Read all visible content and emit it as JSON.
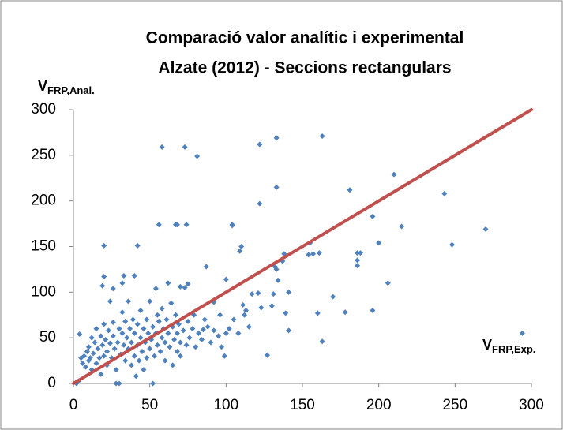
{
  "chart_data": {
    "type": "scatter",
    "title": [
      "Comparació valor analític i experimental",
      "Alzate (2012) - Seccions rectangulars"
    ],
    "y_label": {
      "main": "V",
      "sub": "FRP,Anal."
    },
    "x_label": {
      "main": "V",
      "sub": "FRP,Exp."
    },
    "xlim": [
      0,
      300
    ],
    "ylim": [
      0,
      300
    ],
    "xticks": [
      0,
      50,
      100,
      150,
      200,
      250,
      300
    ],
    "yticks": [
      0,
      50,
      100,
      150,
      200,
      250,
      300
    ],
    "grid": false,
    "series": [
      {
        "type": "scatter",
        "color": "#4f81bd",
        "points": [
          [
            58,
            259
          ],
          [
            73,
            259
          ],
          [
            81,
            249
          ],
          [
            122,
            262
          ],
          [
            133,
            269
          ],
          [
            163,
            271
          ],
          [
            133,
            215
          ],
          [
            122,
            197
          ],
          [
            210,
            229
          ],
          [
            243,
            208
          ],
          [
            181,
            212
          ],
          [
            270,
            169
          ],
          [
            215,
            172
          ],
          [
            196,
            183
          ],
          [
            200,
            154
          ],
          [
            248,
            152
          ],
          [
            294,
            55
          ],
          [
            163,
            46
          ],
          [
            127,
            31
          ],
          [
            206,
            110
          ],
          [
            186,
            143
          ],
          [
            188,
            143
          ],
          [
            186,
            135
          ],
          [
            186,
            129
          ],
          [
            178,
            78
          ],
          [
            196,
            80
          ],
          [
            170,
            95
          ],
          [
            155,
            154
          ],
          [
            157,
            142
          ],
          [
            161,
            143
          ],
          [
            154,
            141
          ],
          [
            138,
            142
          ],
          [
            137,
            134
          ],
          [
            132,
            128
          ],
          [
            133,
            125
          ],
          [
            134,
            113
          ],
          [
            131,
            98
          ],
          [
            130,
            85
          ],
          [
            139,
            77
          ],
          [
            160,
            77
          ],
          [
            141,
            58
          ],
          [
            141,
            100
          ],
          [
            110,
            150
          ],
          [
            109,
            145
          ],
          [
            104,
            174
          ],
          [
            104,
            173
          ],
          [
            74,
            174
          ],
          [
            68,
            174
          ],
          [
            67,
            174
          ],
          [
            56,
            174
          ],
          [
            42,
            151
          ],
          [
            20,
            151
          ],
          [
            87,
            128
          ],
          [
            100,
            114
          ],
          [
            117,
            98
          ],
          [
            121,
            99
          ],
          [
            111,
            86
          ],
          [
            113,
            80
          ],
          [
            123,
            83
          ],
          [
            96,
            75
          ],
          [
            100,
            55
          ],
          [
            85,
            59
          ],
          [
            99,
            30
          ],
          [
            92,
            89
          ],
          [
            75,
            109
          ],
          [
            70,
            106
          ],
          [
            62,
            110
          ],
          [
            40,
            118
          ],
          [
            33,
            118
          ],
          [
            20,
            117
          ],
          [
            19,
            107
          ],
          [
            32,
            110
          ],
          [
            26,
            104
          ],
          [
            54,
            104
          ],
          [
            2,
            0
          ],
          [
            3,
            2
          ],
          [
            5,
            28
          ],
          [
            4,
            54
          ],
          [
            6,
            22
          ],
          [
            7,
            30
          ],
          [
            8,
            18
          ],
          [
            9,
            35
          ],
          [
            10,
            25
          ],
          [
            10,
            40
          ],
          [
            11,
            28
          ],
          [
            12,
            50
          ],
          [
            12,
            15
          ],
          [
            13,
            33
          ],
          [
            14,
            45
          ],
          [
            15,
            22
          ],
          [
            15,
            60
          ],
          [
            16,
            38
          ],
          [
            17,
            28
          ],
          [
            18,
            52
          ],
          [
            18,
            10
          ],
          [
            19,
            42
          ],
          [
            20,
            30
          ],
          [
            20,
            65
          ],
          [
            21,
            48
          ],
          [
            22,
            20
          ],
          [
            22,
            35
          ],
          [
            23,
            58
          ],
          [
            24,
            44
          ],
          [
            24,
            90
          ],
          [
            25,
            28
          ],
          [
            26,
            52
          ],
          [
            26,
            67
          ],
          [
            27,
            38
          ],
          [
            28,
            15
          ],
          [
            28,
            0
          ],
          [
            29,
            45
          ],
          [
            30,
            60
          ],
          [
            30,
            0
          ],
          [
            31,
            32
          ],
          [
            32,
            55
          ],
          [
            32,
            78
          ],
          [
            33,
            42
          ],
          [
            34,
            25
          ],
          [
            34,
            68
          ],
          [
            35,
            50
          ],
          [
            36,
            38
          ],
          [
            36,
            90
          ],
          [
            37,
            60
          ],
          [
            38,
            20
          ],
          [
            38,
            45
          ],
          [
            39,
            70
          ],
          [
            40,
            30
          ],
          [
            40,
            55
          ],
          [
            41,
            8
          ],
          [
            42,
            42
          ],
          [
            42,
            65
          ],
          [
            43,
            25
          ],
          [
            44,
            50
          ],
          [
            44,
            80
          ],
          [
            45,
            35
          ],
          [
            46,
            60
          ],
          [
            46,
            15
          ],
          [
            47,
            45
          ],
          [
            48,
            70
          ],
          [
            48,
            28
          ],
          [
            49,
            55
          ],
          [
            50,
            38
          ],
          [
            50,
            90
          ],
          [
            51,
            48
          ],
          [
            52,
            62
          ],
          [
            52,
            0
          ],
          [
            53,
            30
          ],
          [
            54,
            55
          ],
          [
            55,
            42
          ],
          [
            55,
            75
          ],
          [
            56,
            68
          ],
          [
            57,
            35
          ],
          [
            58,
            50
          ],
          [
            58,
            82
          ],
          [
            59,
            60
          ],
          [
            60,
            45
          ],
          [
            60,
            25
          ],
          [
            61,
            70
          ],
          [
            62,
            55
          ],
          [
            63,
            40
          ],
          [
            64,
            88
          ],
          [
            65,
            62
          ],
          [
            65,
            20
          ],
          [
            66,
            48
          ],
          [
            67,
            75
          ],
          [
            68,
            35
          ],
          [
            68,
            55
          ],
          [
            69,
            65
          ],
          [
            70,
            45
          ],
          [
            70,
            30
          ],
          [
            72,
            58
          ],
          [
            73,
            105
          ],
          [
            74,
            42
          ],
          [
            75,
            68
          ],
          [
            76,
            50
          ],
          [
            78,
            60
          ],
          [
            79,
            75
          ],
          [
            80,
            40
          ],
          [
            82,
            55
          ],
          [
            84,
            48
          ],
          [
            86,
            70
          ],
          [
            88,
            62
          ],
          [
            90,
            45
          ],
          [
            92,
            58
          ],
          [
            95,
            52
          ],
          [
            97,
            40
          ],
          [
            102,
            60
          ],
          [
            105,
            70
          ],
          [
            108,
            55
          ],
          [
            112,
            75
          ],
          [
            115,
            62
          ]
        ]
      },
      {
        "type": "line",
        "color": "#c0504d",
        "points": [
          [
            0,
            0
          ],
          [
            300,
            300
          ]
        ]
      }
    ]
  }
}
